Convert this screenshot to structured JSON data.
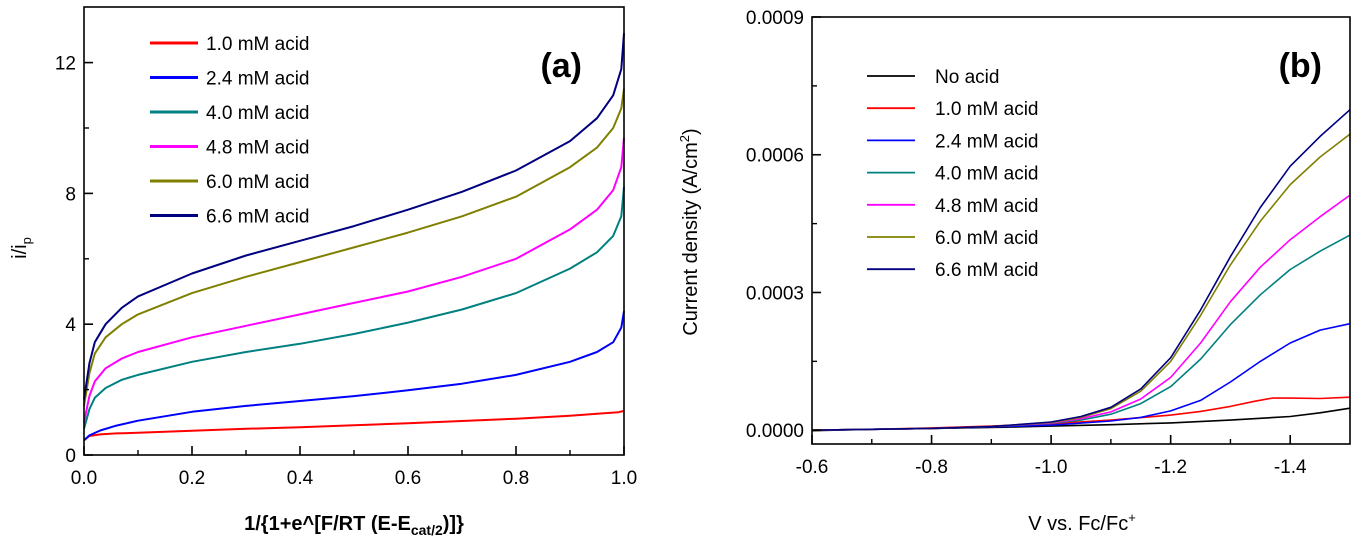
{
  "chart_data": [
    {
      "type": "line",
      "panel_label": "(a)",
      "xlabel": "1/{1+e^[F/RT (E-E",
      "xlabel_sub": "cat/2",
      "xlabel_end": ")]}",
      "ylabel": "i/i",
      "ylabel_sub": "p",
      "xlim": [
        0.0,
        1.0
      ],
      "ylim": [
        0,
        13.7
      ],
      "xticks": [
        "0.0",
        "0.2",
        "0.4",
        "0.6",
        "0.8",
        "1.0"
      ],
      "yticks": [
        "0",
        "4",
        "8",
        "12"
      ],
      "legend_position": "top-left",
      "series": [
        {
          "name": "1.0 mM acid",
          "color": "#ff0000",
          "x": [
            0,
            0.01,
            0.03,
            0.06,
            0.1,
            0.2,
            0.3,
            0.4,
            0.5,
            0.6,
            0.7,
            0.8,
            0.9,
            0.95,
            0.99,
            1.0
          ],
          "y": [
            0.45,
            0.58,
            0.63,
            0.66,
            0.68,
            0.74,
            0.8,
            0.85,
            0.91,
            0.97,
            1.04,
            1.11,
            1.2,
            1.26,
            1.31,
            1.35
          ]
        },
        {
          "name": "2.4 mM acid",
          "color": "#0000ff",
          "x": [
            0,
            0.01,
            0.03,
            0.06,
            0.1,
            0.2,
            0.3,
            0.4,
            0.5,
            0.6,
            0.7,
            0.8,
            0.9,
            0.95,
            0.98,
            0.995,
            1.0
          ],
          "y": [
            0.45,
            0.6,
            0.75,
            0.9,
            1.05,
            1.32,
            1.5,
            1.65,
            1.8,
            1.98,
            2.18,
            2.45,
            2.85,
            3.15,
            3.45,
            3.9,
            4.4
          ]
        },
        {
          "name": "4.0 mM acid",
          "color": "#008080",
          "x": [
            0,
            0.01,
            0.02,
            0.04,
            0.07,
            0.1,
            0.2,
            0.3,
            0.4,
            0.5,
            0.6,
            0.7,
            0.8,
            0.9,
            0.95,
            0.98,
            0.995,
            1.0
          ],
          "y": [
            0.8,
            1.4,
            1.75,
            2.05,
            2.3,
            2.45,
            2.85,
            3.15,
            3.4,
            3.7,
            4.05,
            4.45,
            4.95,
            5.7,
            6.2,
            6.7,
            7.3,
            8.2
          ]
        },
        {
          "name": "4.8 mM acid",
          "color": "#ff00ff",
          "x": [
            0,
            0.01,
            0.02,
            0.04,
            0.07,
            0.1,
            0.2,
            0.3,
            0.4,
            0.5,
            0.6,
            0.7,
            0.8,
            0.9,
            0.95,
            0.98,
            0.995,
            1.0
          ],
          "y": [
            1.0,
            1.8,
            2.25,
            2.65,
            2.95,
            3.15,
            3.6,
            3.95,
            4.3,
            4.65,
            5.0,
            5.45,
            6.0,
            6.9,
            7.5,
            8.1,
            8.8,
            9.7
          ]
        },
        {
          "name": "6.0 mM acid",
          "color": "#808000",
          "x": [
            0,
            0.01,
            0.02,
            0.04,
            0.07,
            0.1,
            0.2,
            0.3,
            0.4,
            0.5,
            0.6,
            0.7,
            0.8,
            0.9,
            0.95,
            0.98,
            0.995,
            1.0
          ],
          "y": [
            1.5,
            2.5,
            3.1,
            3.6,
            4.0,
            4.3,
            4.95,
            5.45,
            5.9,
            6.35,
            6.8,
            7.3,
            7.9,
            8.8,
            9.4,
            10.0,
            10.6,
            11.2
          ]
        },
        {
          "name": "6.6 mM acid",
          "color": "#000080",
          "x": [
            0,
            0.01,
            0.02,
            0.04,
            0.07,
            0.1,
            0.2,
            0.3,
            0.4,
            0.5,
            0.6,
            0.7,
            0.8,
            0.9,
            0.95,
            0.98,
            0.995,
            1.0
          ],
          "y": [
            1.7,
            2.8,
            3.45,
            4.0,
            4.5,
            4.85,
            5.55,
            6.1,
            6.55,
            7.0,
            7.5,
            8.05,
            8.7,
            9.6,
            10.3,
            11.0,
            11.8,
            12.9
          ]
        }
      ]
    },
    {
      "type": "line",
      "panel_label": "(b)",
      "xlabel": "V vs. Fc/Fc",
      "xlabel_sup": "+",
      "ylabel": "Current density (A/cm",
      "ylabel_sup": "2",
      "ylabel_end": ")",
      "xlim": [
        -0.6,
        -1.5
      ],
      "ylim": [
        -3e-05,
        0.0009
      ],
      "xticks": [
        "-0.6",
        "-0.8",
        "-1.0",
        "-1.2",
        "-1.4"
      ],
      "yticks": [
        "0.0000",
        "0.0003",
        "0.0006",
        "0.0009"
      ],
      "legend_position": "top-left",
      "series": [
        {
          "name": "No acid",
          "color": "#000000",
          "x": [
            -0.6,
            -0.7,
            -0.8,
            -0.9,
            -1.0,
            -1.1,
            -1.2,
            -1.3,
            -1.4,
            -1.45,
            -1.5
          ],
          "y": [
            -1e-06,
            2e-06,
            4e-06,
            6e-06,
            9e-06,
            1.2e-05,
            1.6e-05,
            2.2e-05,
            3e-05,
            3.8e-05,
            4.8e-05
          ]
        },
        {
          "name": "1.0 mM acid",
          "color": "#ff0000",
          "x": [
            -0.6,
            -0.7,
            -0.8,
            -0.9,
            -1.0,
            -1.1,
            -1.2,
            -1.25,
            -1.3,
            -1.34,
            -1.37,
            -1.4,
            -1.45,
            -1.5
          ],
          "y": [
            0,
            2e-06,
            5e-06,
            9e-06,
            1.4e-05,
            2.2e-05,
            3.3e-05,
            4.1e-05,
            5.2e-05,
            6.3e-05,
            7e-05,
            7e-05,
            6.9e-05,
            7.2e-05
          ]
        },
        {
          "name": "2.4 mM acid",
          "color": "#0000ff",
          "x": [
            -0.6,
            -0.7,
            -0.8,
            -0.9,
            -1.0,
            -1.1,
            -1.15,
            -1.2,
            -1.25,
            -1.3,
            -1.35,
            -1.4,
            -1.45,
            -1.5
          ],
          "y": [
            0,
            2e-06,
            4e-06,
            7e-06,
            1.1e-05,
            2e-05,
            2.8e-05,
            4.2e-05,
            6.5e-05,
            0.000105,
            0.00015,
            0.00019,
            0.000218,
            0.000232
          ]
        },
        {
          "name": "4.0 mM acid",
          "color": "#008080",
          "x": [
            -0.6,
            -0.7,
            -0.8,
            -0.9,
            -1.0,
            -1.05,
            -1.1,
            -1.15,
            -1.2,
            -1.25,
            -1.3,
            -1.35,
            -1.4,
            -1.45,
            -1.5
          ],
          "y": [
            0,
            2e-06,
            4e-06,
            8e-06,
            1.5e-05,
            2.2e-05,
            3.5e-05,
            5.8e-05,
            9.5e-05,
            0.000155,
            0.00023,
            0.000295,
            0.00035,
            0.00039,
            0.000425
          ]
        },
        {
          "name": "4.8 mM acid",
          "color": "#ff00ff",
          "x": [
            -0.6,
            -0.7,
            -0.8,
            -0.9,
            -1.0,
            -1.05,
            -1.1,
            -1.15,
            -1.2,
            -1.25,
            -1.3,
            -1.35,
            -1.4,
            -1.45,
            -1.5
          ],
          "y": [
            0,
            2e-06,
            4e-06,
            8e-06,
            1.6e-05,
            2.5e-05,
            4e-05,
            6.8e-05,
            0.000115,
            0.00019,
            0.00028,
            0.000355,
            0.000415,
            0.000465,
            0.000512
          ]
        },
        {
          "name": "6.0 mM acid",
          "color": "#808000",
          "x": [
            -0.6,
            -0.7,
            -0.8,
            -0.9,
            -1.0,
            -1.05,
            -1.1,
            -1.15,
            -1.2,
            -1.25,
            -1.3,
            -1.35,
            -1.4,
            -1.45,
            -1.5
          ],
          "y": [
            0,
            2e-06,
            4e-06,
            8e-06,
            1.7e-05,
            2.8e-05,
            4.7e-05,
            8.5e-05,
            0.00015,
            0.00025,
            0.00036,
            0.000455,
            0.000535,
            0.000595,
            0.000645
          ]
        },
        {
          "name": "6.6 mM acid",
          "color": "#000080",
          "x": [
            -0.6,
            -0.7,
            -0.8,
            -0.9,
            -1.0,
            -1.05,
            -1.1,
            -1.15,
            -1.2,
            -1.25,
            -1.3,
            -1.35,
            -1.4,
            -1.45,
            -1.5
          ],
          "y": [
            0,
            2e-06,
            4e-06,
            8e-06,
            1.8e-05,
            3e-05,
            5e-05,
            9e-05,
            0.000158,
            0.000262,
            0.000378,
            0.000485,
            0.000575,
            0.00064,
            0.000698
          ]
        }
      ]
    }
  ]
}
